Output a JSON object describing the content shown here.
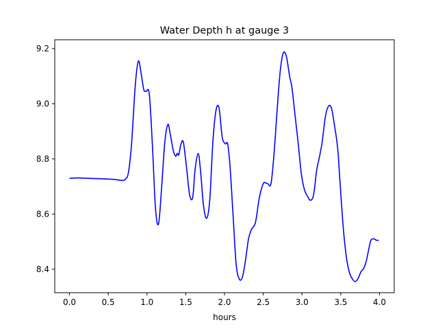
{
  "chart_data": {
    "type": "line",
    "title": "Water Depth h at gauge 3",
    "xlabel": "hours",
    "ylabel": "",
    "xlim": [
      -0.19,
      4.19
    ],
    "ylim": [
      8.315,
      9.232
    ],
    "xticks": [
      0.0,
      0.5,
      1.0,
      1.5,
      2.0,
      2.5,
      3.0,
      3.5,
      4.0
    ],
    "xtick_labels": [
      "0.0",
      "0.5",
      "1.0",
      "1.5",
      "2.0",
      "2.5",
      "3.0",
      "3.5",
      "4.0"
    ],
    "yticks": [
      8.4,
      8.6,
      8.8,
      9.0,
      9.2
    ],
    "ytick_labels": [
      "8.4",
      "8.6",
      "8.8",
      "9.0",
      "9.2"
    ],
    "grid": false,
    "series": [
      {
        "color": "#0000ff",
        "x": [
          0.0,
          0.1,
          0.2,
          0.3,
          0.4,
          0.5,
          0.6,
          0.68,
          0.72,
          0.76,
          0.8,
          0.85,
          0.89,
          0.93,
          0.96,
          0.99,
          1.03,
          1.07,
          1.11,
          1.15,
          1.19,
          1.23,
          1.27,
          1.3,
          1.34,
          1.37,
          1.39,
          1.41,
          1.44,
          1.47,
          1.51,
          1.55,
          1.59,
          1.62,
          1.66,
          1.69,
          1.73,
          1.77,
          1.81,
          1.85,
          1.89,
          1.93,
          1.97,
          2.01,
          2.04,
          2.07,
          2.11,
          2.15,
          2.19,
          2.23,
          2.27,
          2.31,
          2.35,
          2.4,
          2.45,
          2.5,
          2.53,
          2.56,
          2.6,
          2.64,
          2.68,
          2.72,
          2.76,
          2.8,
          2.84,
          2.87,
          2.91,
          2.95,
          2.99,
          3.03,
          3.07,
          3.11,
          3.15,
          3.19,
          3.22,
          3.26,
          3.3,
          3.34,
          3.38,
          3.42,
          3.46,
          3.49,
          3.53,
          3.57,
          3.61,
          3.65,
          3.69,
          3.73,
          3.76,
          3.8,
          3.83,
          3.86,
          3.89,
          3.93,
          3.96,
          3.99
        ],
        "y": [
          8.73,
          8.731,
          8.73,
          8.729,
          8.728,
          8.727,
          8.725,
          8.722,
          8.726,
          8.75,
          8.85,
          9.07,
          9.155,
          9.1,
          9.05,
          9.045,
          9.035,
          8.85,
          8.62,
          8.565,
          8.7,
          8.86,
          8.925,
          8.89,
          8.83,
          8.81,
          8.82,
          8.815,
          8.855,
          8.86,
          8.77,
          8.67,
          8.66,
          8.76,
          8.82,
          8.76,
          8.63,
          8.585,
          8.65,
          8.86,
          8.975,
          8.985,
          8.88,
          8.855,
          8.855,
          8.78,
          8.6,
          8.42,
          8.365,
          8.37,
          8.43,
          8.51,
          8.545,
          8.57,
          8.66,
          8.71,
          8.713,
          8.71,
          8.71,
          8.82,
          8.98,
          9.12,
          9.185,
          9.17,
          9.1,
          9.06,
          8.96,
          8.86,
          8.75,
          8.69,
          8.665,
          8.65,
          8.67,
          8.76,
          8.8,
          8.86,
          8.95,
          8.99,
          8.985,
          8.92,
          8.84,
          8.72,
          8.56,
          8.45,
          8.39,
          8.365,
          8.355,
          8.37,
          8.39,
          8.405,
          8.43,
          8.47,
          8.505,
          8.51,
          8.505,
          8.505
        ]
      }
    ]
  }
}
